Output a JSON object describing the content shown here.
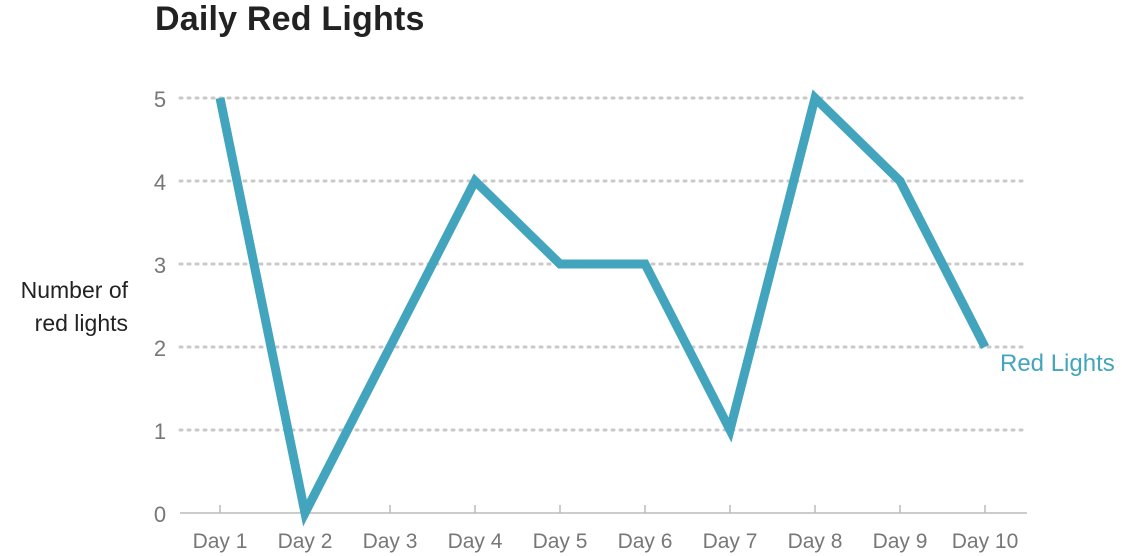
{
  "chart_data": {
    "type": "line",
    "title": "Daily Red Lights",
    "xlabel": "",
    "ylabel": "Number of red lights",
    "categories": [
      "Day 1",
      "Day 2",
      "Day 3",
      "Day 4",
      "Day 5",
      "Day 6",
      "Day 7",
      "Day 8",
      "Day 9",
      "Day 10"
    ],
    "series": [
      {
        "name": "Red Lights",
        "values": [
          5,
          0,
          2,
          4,
          3,
          3,
          1,
          5,
          4,
          2
        ],
        "color": "#43a5bd"
      }
    ],
    "yticks": [
      "0",
      "1",
      "2",
      "3",
      "4",
      "5"
    ],
    "ylim": [
      0,
      5
    ],
    "grid": true,
    "legend": "end-of-line label"
  }
}
